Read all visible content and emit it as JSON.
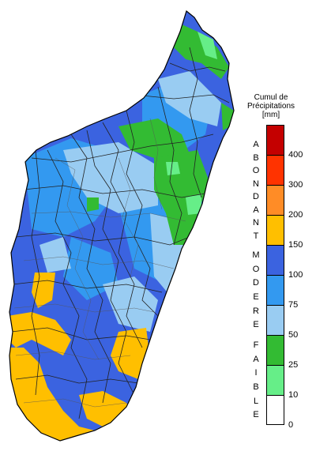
{
  "legend": {
    "title_line1": "Cumul de",
    "title_line2": "Précipitations",
    "title_line3": "[mm]",
    "categories": [
      {
        "label": "ABONDANT"
      },
      {
        "label": "MODERE"
      },
      {
        "label": "FAIBLE"
      }
    ],
    "classes": [
      {
        "min": 400,
        "max": 450,
        "color": "#c40000"
      },
      {
        "min": 300,
        "max": 400,
        "color": "#ff3300"
      },
      {
        "min": 200,
        "max": 300,
        "color": "#ff8c26"
      },
      {
        "min": 150,
        "max": 200,
        "color": "#ffbf00"
      },
      {
        "min": 100,
        "max": 150,
        "color": "#3b63e0"
      },
      {
        "min": 75,
        "max": 100,
        "color": "#3399f0"
      },
      {
        "min": 50,
        "max": 75,
        "color": "#99ccf2"
      },
      {
        "min": 25,
        "max": 50,
        "color": "#33bb33"
      },
      {
        "min": 10,
        "max": 25,
        "color": "#66ee88"
      },
      {
        "min": 0,
        "max": 10,
        "color": "#ffffff"
      }
    ],
    "ticks": [
      "400",
      "300",
      "200",
      "150",
      "100",
      "75",
      "50",
      "25",
      "10",
      "0"
    ]
  },
  "map": {
    "region": "Madagascar",
    "colors": {
      "abondant_yellow": "#ffbf00",
      "modere_dark": "#3b63e0",
      "modere_mid": "#3399f0",
      "modere_light": "#99ccf2",
      "faible_green": "#33bb33",
      "faible_light": "#66ee88"
    }
  }
}
